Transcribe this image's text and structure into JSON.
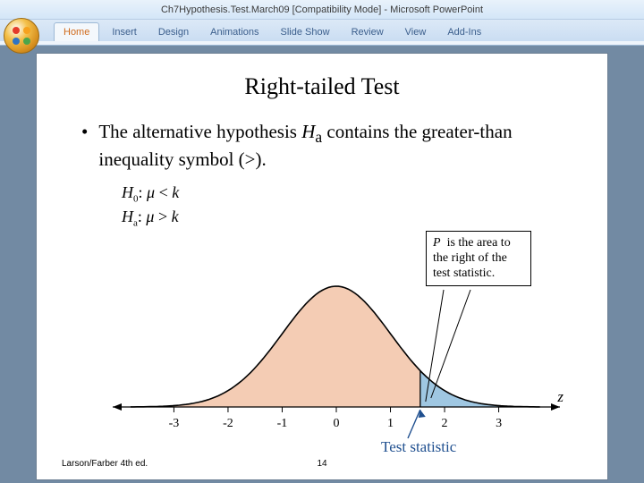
{
  "window": {
    "title": "Ch7Hypothesis.Test.March09 [Compatibility Mode] - Microsoft PowerPoint"
  },
  "ribbon": {
    "tabs": [
      "Home",
      "Insert",
      "Design",
      "Animations",
      "Slide Show",
      "Review",
      "View",
      "Add-Ins"
    ],
    "active_index": 0
  },
  "slide": {
    "title": "Right-tailed Test",
    "bullet": "The alternative hypothesis Hₐ contains the greater-than inequality symbol (>).",
    "h0": "H₀: μ < k",
    "ha": "Hₐ: μ > k",
    "footer_left": "Larson/Farber 4th ed.",
    "page_number": "14",
    "callout": "P  is the area to the right of the test statistic.",
    "test_stat_label": "Test statistic",
    "chart": {
      "type": "density-curve",
      "xmin": -3.8,
      "xmax": 3.8,
      "axis_ticks": [
        -3,
        -2,
        -1,
        0,
        1,
        2,
        3
      ],
      "test_stat_x": 1.55,
      "curve_stroke": "#000000",
      "curve_width": 1.6,
      "fill_left": "#f4ccb4",
      "fill_right": "#9fc7e2",
      "axis_color": "#000000",
      "tick_fontsize": 14,
      "z_label": "z"
    }
  },
  "colors": {
    "accent_blue": "#1f4f8f"
  }
}
